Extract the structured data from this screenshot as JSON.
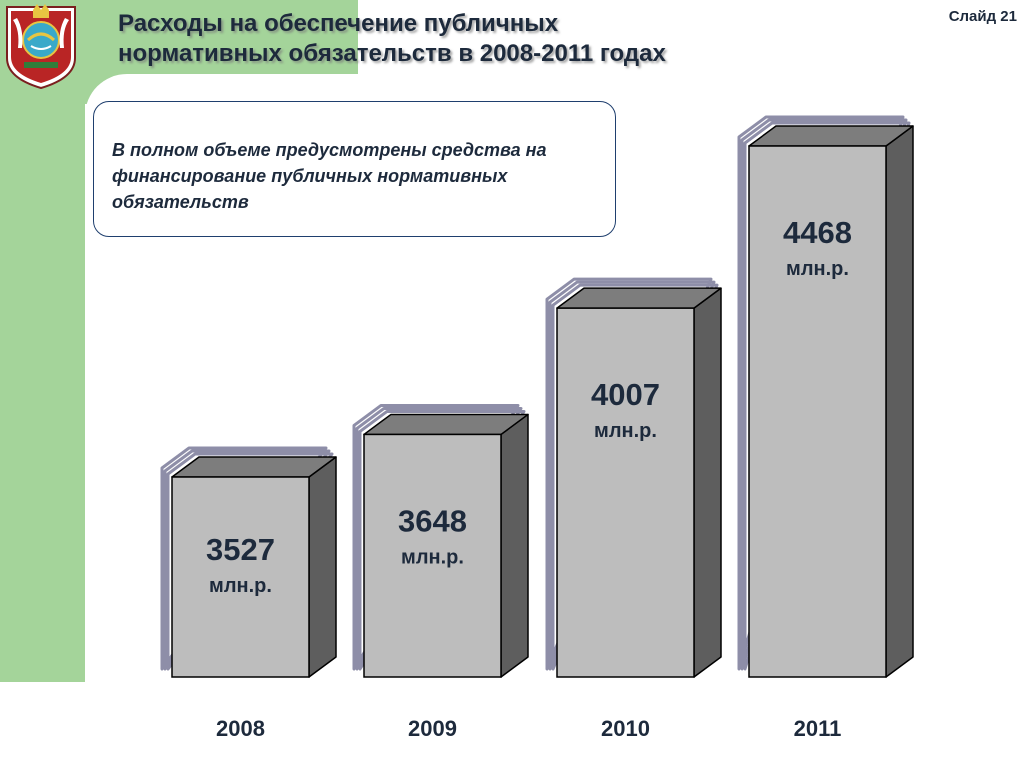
{
  "slide": {
    "title_line1": "Расходы на обеспечение публичных",
    "title_line2": "нормативных обязательств в 2008-2011 годах",
    "slide_label": "Слайд 21",
    "note": "В полном объеме предусмотрены средства на финансирование публичных нормативных обязательств"
  },
  "colors": {
    "green_band": "#a4d49a",
    "bar_front": "#bdbdbd",
    "bar_side": "#5e5e5e",
    "bar_top": "#7d7d7d",
    "bar_shadow": "#8e8ea8",
    "title_text": "#1d2a3c"
  },
  "chart_data": {
    "type": "bar",
    "categories": [
      "2008",
      "2009",
      "2010",
      "2011"
    ],
    "values": [
      3527,
      3648,
      4007,
      4468
    ],
    "value_labels": [
      "3527",
      "3648",
      "4007",
      "4468"
    ],
    "unit_label": "млн.р.",
    "title": "",
    "xlabel": "",
    "ylabel": "",
    "grid": false,
    "legend": "none"
  }
}
